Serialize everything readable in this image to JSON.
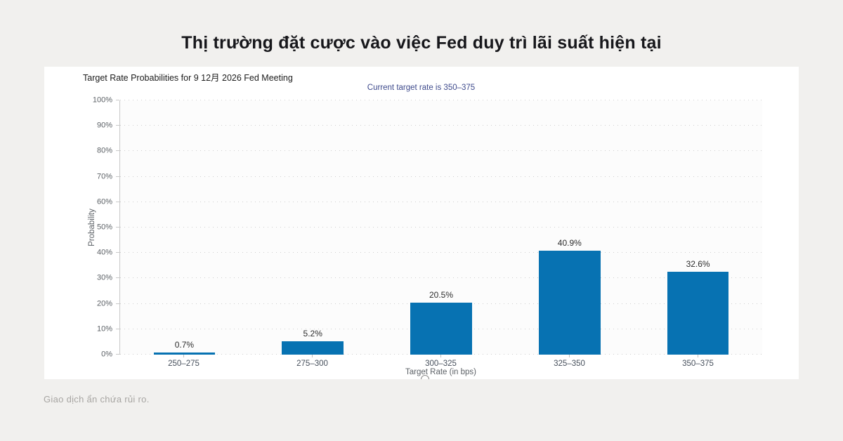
{
  "page": {
    "title": "Thị trường đặt cược vào việc Fed duy trì lãi suất hiện tại",
    "footer": "Giao dịch ẩn chứa rủi ro."
  },
  "chart": {
    "title": "Target Rate Probabilities for 9 12月 2026 Fed Meeting",
    "subtitle": "Current target rate is 350–375",
    "ylabel": "Probability",
    "xlabel": "Target Rate (in bps)"
  },
  "chart_data": {
    "type": "bar",
    "title": "Target Rate Probabilities for 9 12月 2026 Fed Meeting",
    "subtitle": "Current target rate is 350–375",
    "categories": [
      "250–275",
      "275–300",
      "300–325",
      "325–350",
      "350–375"
    ],
    "values": [
      0.7,
      5.2,
      20.5,
      40.9,
      32.6
    ],
    "value_labels": [
      "0.7%",
      "5.2%",
      "20.5%",
      "40.9%",
      "32.6%"
    ],
    "xlabel": "Target Rate (in bps)",
    "ylabel": "Probability",
    "ylim": [
      0,
      100
    ],
    "ytick_step": 10,
    "ytick_labels": [
      "0%",
      "10%",
      "20%",
      "30%",
      "40%",
      "50%",
      "60%",
      "70%",
      "80%",
      "90%",
      "100%"
    ],
    "grid": "dotted-horizontal",
    "legend": "none",
    "bar_color": "#0772b2"
  },
  "colors": {
    "page_background": "#f1f0ee",
    "card_background": "#ffffff",
    "bar": "#0772b2",
    "subtitle": "#3e4a8c",
    "axis_text": "#5c6166",
    "footer_text": "#a7a5a2"
  }
}
